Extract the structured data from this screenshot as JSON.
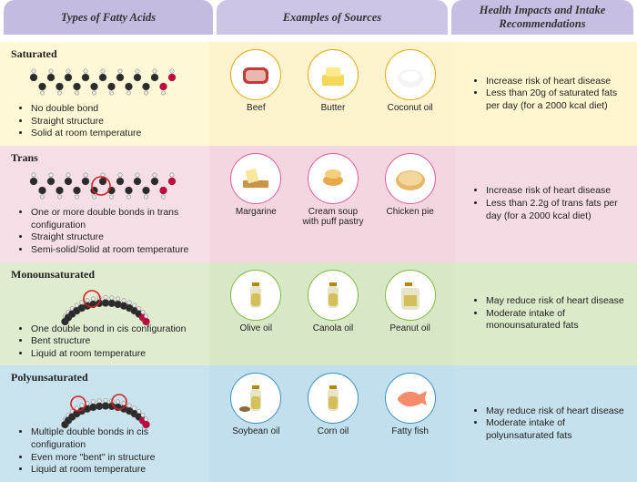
{
  "headers": {
    "types": "Types of Fatty Acids",
    "sources": "Examples of Sources",
    "health": "Health Impacts and Intake Recommendations",
    "bg_types": "#c4bbe0",
    "bg_sources": "#cdc5e5",
    "bg_health": "#c7bfe2",
    "text_color": "#333333"
  },
  "rows": [
    {
      "title": "Saturated",
      "bg_type": "#fff8d6",
      "bg_src": "#fdf3cf",
      "bg_health": "#fff5cf",
      "circle_border": "#e6a800",
      "molecule": "straight",
      "bullets": [
        "No double bond",
        "Straight structure",
        "Solid at room temperature"
      ],
      "sources": [
        {
          "label": "Beef",
          "icon": "beef"
        },
        {
          "label": "Butter",
          "icon": "butter"
        },
        {
          "label": "Coconut oil",
          "icon": "coconut"
        }
      ],
      "health": [
        "Increase risk of heart disease",
        "Less than 20g of saturated fats per day (for a 2000 kcal diet)"
      ]
    },
    {
      "title": "Trans",
      "bg_type": "#f6dee6",
      "bg_src": "#f3d6e0",
      "bg_health": "#f5dbe4",
      "circle_border": "#e05a9b",
      "molecule": "straight-ring",
      "bullets": [
        "One or more double bonds in trans configuration",
        "Straight structure",
        "Semi-solid/Solid at room temperature"
      ],
      "sources": [
        {
          "label": "Margarine",
          "icon": "margarine"
        },
        {
          "label": "Cream soup with puff pastry",
          "icon": "soup"
        },
        {
          "label": "Chicken pie",
          "icon": "pie"
        }
      ],
      "health": [
        "Increase risk of heart disease",
        "Less than 2.2g of trans fats per day (for a 2000 kcal diet)"
      ]
    },
    {
      "title": "Monounsaturated",
      "bg_type": "#dfeccf",
      "bg_src": "#d8e8c6",
      "bg_health": "#dbeac9",
      "circle_border": "#7fb741",
      "molecule": "bent-one",
      "bullets": [
        "One double bond in cis configuration",
        "Bent structure",
        "Liquid at room temperature"
      ],
      "sources": [
        {
          "label": "Olive oil",
          "icon": "bottle"
        },
        {
          "label": "Canola oil",
          "icon": "bottle"
        },
        {
          "label": "Peanut oil",
          "icon": "jug"
        }
      ],
      "health": [
        "May reduce risk of heart disease",
        "Moderate intake of monounsaturated fats"
      ]
    },
    {
      "title": "Polyunsaturated",
      "bg_type": "#c9e3ee",
      "bg_src": "#c1dfec",
      "bg_health": "#c5e1ed",
      "circle_border": "#3b8fc4",
      "molecule": "bent-two",
      "bullets": [
        "Multiple double bonds in cis configuration",
        "Even more \"bent\" in structure",
        "Liquid at room temperature"
      ],
      "sources": [
        {
          "label": "Soybean oil",
          "icon": "bottle-seeds"
        },
        {
          "label": "Corn oil",
          "icon": "bottle"
        },
        {
          "label": "Fatty fish",
          "icon": "fish"
        }
      ],
      "health": [
        "May reduce risk of heart disease",
        "Moderate intake of polyunsaturated fats"
      ]
    }
  ],
  "colors": {
    "atom_dark": "#2b2b2b",
    "atom_light": "#e8e8e8",
    "atom_red": "#c4003e",
    "ring": "#d61f1f"
  }
}
